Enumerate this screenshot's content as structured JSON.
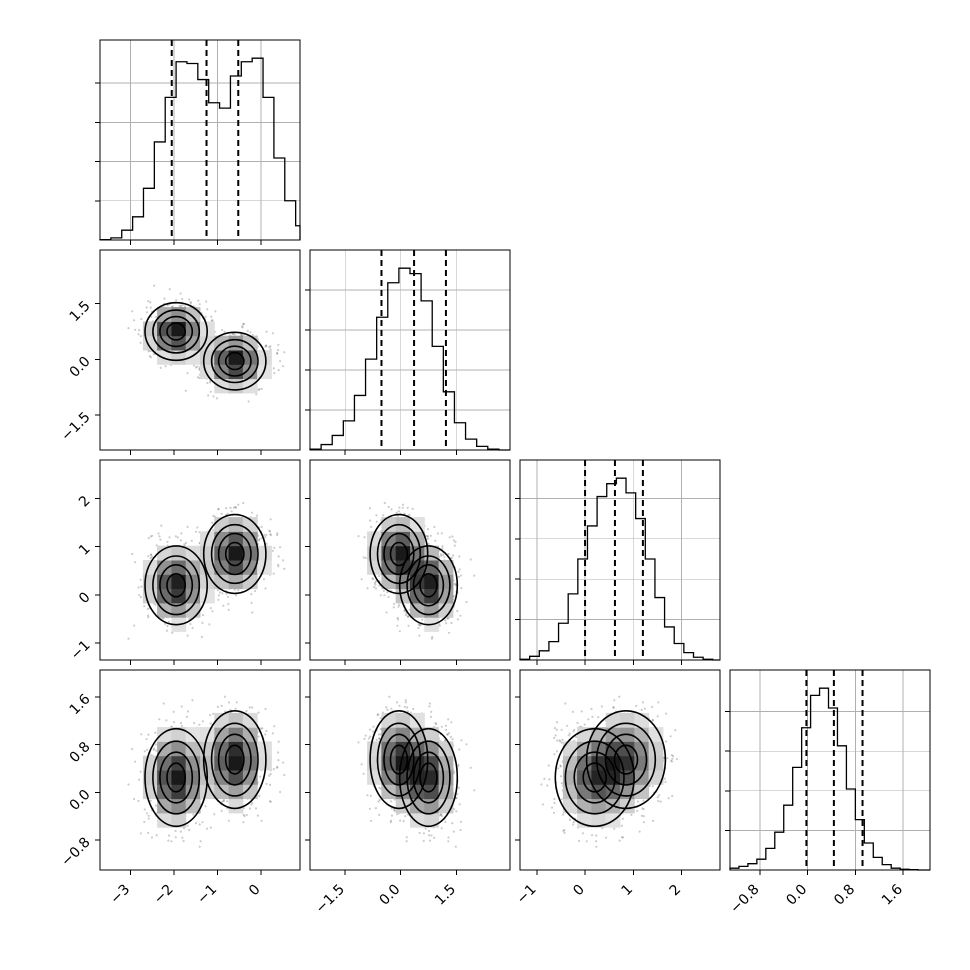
{
  "chart_data": {
    "type": "corner",
    "parameters": 4,
    "grid": true,
    "marginals": [
      {
        "xlim": [
          -3.7,
          0.9
        ],
        "quantiles": [
          -2.05,
          -1.25,
          -0.52
        ],
        "bins_lo": -3.7,
        "bin_width": 0.25,
        "heights": [
          0.002,
          0.012,
          0.055,
          0.13,
          0.29,
          0.55,
          0.8,
          1.0,
          0.99,
          0.9,
          0.77,
          0.74,
          0.92,
          1.0,
          1.02,
          0.8,
          0.46,
          0.22,
          0.08
        ]
      },
      {
        "xlim": [
          -2.45,
          2.95
        ],
        "quantiles": [
          -0.52,
          0.36,
          1.22
        ],
        "bins_lo": -2.45,
        "bin_width": 0.3,
        "heights": [
          0.005,
          0.03,
          0.08,
          0.16,
          0.3,
          0.5,
          0.73,
          0.92,
          1.0,
          0.97,
          0.82,
          0.57,
          0.32,
          0.15,
          0.06,
          0.02,
          0.005,
          0.0
        ]
      },
      {
        "xlim": [
          -1.35,
          2.8
        ],
        "quantiles": [
          0.0,
          0.62,
          1.2
        ],
        "bins_lo": -1.35,
        "bin_width": 0.2,
        "heights": [
          0.004,
          0.02,
          0.05,
          0.1,
          0.2,
          0.36,
          0.55,
          0.73,
          0.89,
          0.96,
          0.99,
          0.91,
          0.77,
          0.55,
          0.34,
          0.18,
          0.09,
          0.04,
          0.015,
          0.004,
          0.0
        ]
      },
      {
        "xlim": [
          -1.3,
          2.05
        ],
        "quantiles": [
          -0.02,
          0.44,
          0.92
        ],
        "bins_lo": -1.3,
        "bin_width": 0.15,
        "heights": [
          0.01,
          0.02,
          0.035,
          0.06,
          0.12,
          0.21,
          0.36,
          0.57,
          0.79,
          0.97,
          1.01,
          0.9,
          0.69,
          0.45,
          0.28,
          0.15,
          0.07,
          0.03,
          0.01,
          0.004,
          0.002,
          0.0
        ]
      }
    ],
    "ranges": [
      [
        -3.7,
        0.9
      ],
      [
        -2.45,
        2.95
      ],
      [
        -1.35,
        2.8
      ],
      [
        -1.3,
        2.05
      ]
    ],
    "ticks": [
      [
        -3,
        -2,
        -1,
        0
      ],
      [
        -1.5,
        0.0,
        1.5
      ],
      [
        -1,
        0,
        1,
        2
      ],
      [
        -0.8,
        0.0,
        0.8,
        1.6
      ]
    ],
    "tick_labels": [
      [
        "−3",
        "−2",
        "−1",
        "0"
      ],
      [
        "−1.5",
        "0.0",
        "1.5"
      ],
      [
        "−1",
        "0",
        "1",
        "2"
      ],
      [
        "−0.8",
        "0.0",
        "0.8",
        "1.6"
      ]
    ],
    "modes": [
      {
        "weight": 0.5,
        "mean": [
          -1.95,
          0.75,
          0.2,
          0.25
        ],
        "sd": [
          0.35,
          0.38,
          0.4,
          0.4
        ]
      },
      {
        "weight": 0.5,
        "mean": [
          -0.6,
          -0.05,
          0.85,
          0.55
        ],
        "sd": [
          0.35,
          0.38,
          0.4,
          0.4
        ]
      }
    ]
  }
}
